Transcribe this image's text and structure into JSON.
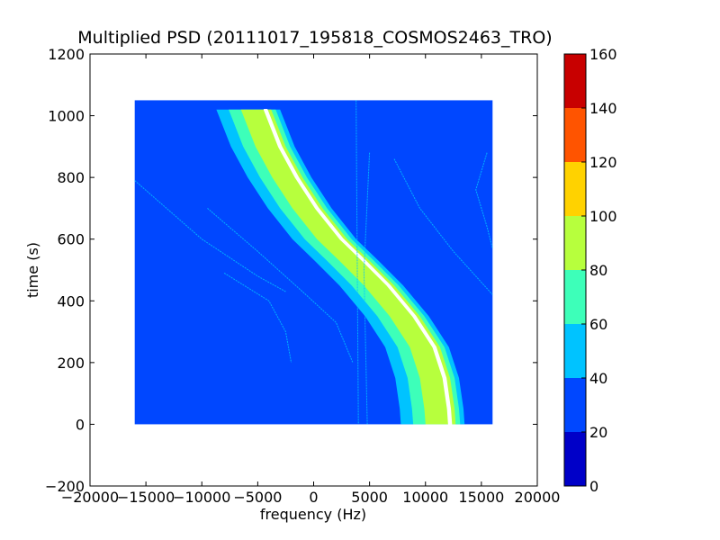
{
  "chart_data": {
    "type": "heatmap",
    "title": "Multiplied PSD (20111017_195818_COSMOS2463_TRO)",
    "xlabel": "frequency (Hz)",
    "ylabel": "time (s)",
    "xlim": [
      -20000,
      20000
    ],
    "ylim": [
      -200,
      1200
    ],
    "xticks": [
      -20000,
      -15000,
      -10000,
      -5000,
      0,
      5000,
      10000,
      15000,
      20000
    ],
    "yticks": [
      -200,
      0,
      200,
      400,
      600,
      800,
      1000,
      1200
    ],
    "data_extent": {
      "x": [
        -16000,
        16000
      ],
      "y": [
        0,
        1050
      ]
    },
    "background_value": 30,
    "main_trace": {
      "description_levels": "nested contour bands",
      "center_points": [
        {
          "t": 1020,
          "f": -4300
        },
        {
          "t": 900,
          "f": -3000
        },
        {
          "t": 800,
          "f": -1500
        },
        {
          "t": 700,
          "f": 300
        },
        {
          "t": 600,
          "f": 2500
        },
        {
          "t": 530,
          "f": 4500
        },
        {
          "t": 450,
          "f": 6700
        },
        {
          "t": 350,
          "f": 9000
        },
        {
          "t": 250,
          "f": 10800
        },
        {
          "t": 150,
          "f": 11700
        },
        {
          "t": 50,
          "f": 12100
        },
        {
          "t": 0,
          "f": 12200
        }
      ],
      "bands": [
        {
          "value": 50,
          "left_width": 4400,
          "right_width": 1300
        },
        {
          "value": 70,
          "left_width": 3300,
          "right_width": 900
        },
        {
          "value": 90,
          "left_width": 2200,
          "right_width": 500
        },
        {
          "value": 150,
          "left_width": 120,
          "right_width": 120
        }
      ]
    },
    "faint_traces": [
      {
        "points": [
          {
            "t": 790,
            "f": -16000
          },
          {
            "t": 600,
            "f": -10000
          },
          {
            "t": 480,
            "f": -5000
          },
          {
            "t": 430,
            "f": -2500
          }
        ]
      },
      {
        "points": [
          {
            "t": 700,
            "f": -9500
          },
          {
            "t": 560,
            "f": -5000
          },
          {
            "t": 430,
            "f": -1000
          },
          {
            "t": 330,
            "f": 2000
          },
          {
            "t": 200,
            "f": 3500
          }
        ]
      },
      {
        "points": [
          {
            "t": 490,
            "f": -8000
          },
          {
            "t": 400,
            "f": -4000
          },
          {
            "t": 300,
            "f": -2500
          },
          {
            "t": 200,
            "f": -2000
          }
        ]
      },
      {
        "points": [
          {
            "t": 860,
            "f": 7200
          },
          {
            "t": 700,
            "f": 9500
          },
          {
            "t": 560,
            "f": 12500
          },
          {
            "t": 420,
            "f": 16000
          }
        ]
      },
      {
        "points": [
          {
            "t": 880,
            "f": 15500
          },
          {
            "t": 760,
            "f": 14500
          },
          {
            "t": 640,
            "f": 15500
          },
          {
            "t": 570,
            "f": 16000
          }
        ]
      },
      {
        "points": [
          {
            "t": 1050,
            "f": 3800
          },
          {
            "t": 0,
            "f": 4000
          }
        ]
      },
      {
        "points": [
          {
            "t": 880,
            "f": 5000
          },
          {
            "t": 500,
            "f": 4500
          },
          {
            "t": 0,
            "f": 4800
          }
        ]
      }
    ],
    "colorbar": {
      "ticks": [
        0,
        20,
        40,
        60,
        80,
        100,
        120,
        140,
        160
      ],
      "colors": [
        "#0000c8",
        "#0047ff",
        "#00c3ff",
        "#3dffb9",
        "#b7ff3d",
        "#ffd200",
        "#ff5400",
        "#c80000"
      ]
    }
  }
}
